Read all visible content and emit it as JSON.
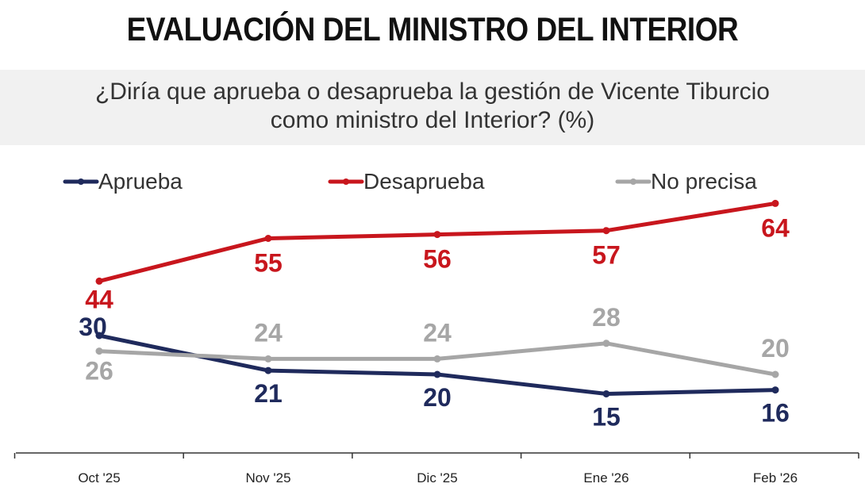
{
  "header": {
    "title": "EVALUACIÓN DEL MINISTRO DEL INTERIOR",
    "subtitle_line1": "¿Diría que aprueba o desaprueba la gestión de Vicente Tiburcio",
    "subtitle_line2": "como ministro del Interior? (%)"
  },
  "chart_data": {
    "type": "line",
    "title": "EVALUACIÓN DEL MINISTRO DEL INTERIOR",
    "subtitle": "¿Diría que aprueba o desaprueba la gestión de Vicente Tiburcio como ministro del Interior? (%)",
    "categories": [
      "Oct '25",
      "Nov '25",
      "Dic '25",
      "Ene '26",
      "Feb '26"
    ],
    "series": [
      {
        "name": "Aprueba",
        "color": "#1f2a5c",
        "values": [
          30,
          21,
          20,
          15,
          16
        ]
      },
      {
        "name": "Desaprueba",
        "color": "#c8161d",
        "values": [
          44,
          55,
          56,
          57,
          64
        ]
      },
      {
        "name": "No precisa",
        "color": "#a6a6a6",
        "values": [
          26,
          24,
          24,
          28,
          20
        ]
      }
    ],
    "legend": "top",
    "grid": false,
    "ylim": [
      0,
      70
    ]
  }
}
